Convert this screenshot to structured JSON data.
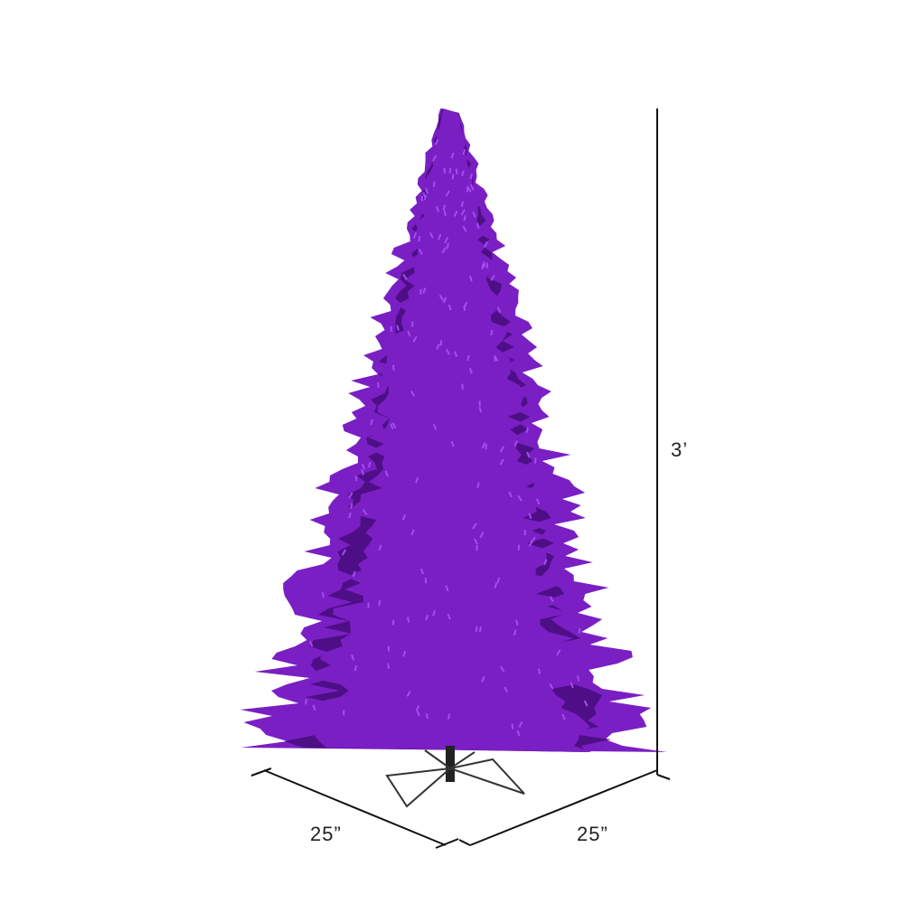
{
  "product": {
    "tree_color": "#7a1fc4",
    "tree_shadow": "#4e0f86",
    "tree_highlight": "#a24df0",
    "stand_color": "#333333"
  },
  "dimensions": {
    "height_label": "3’",
    "width_label": "25”",
    "depth_label": "25”",
    "line_color": "#111111"
  }
}
